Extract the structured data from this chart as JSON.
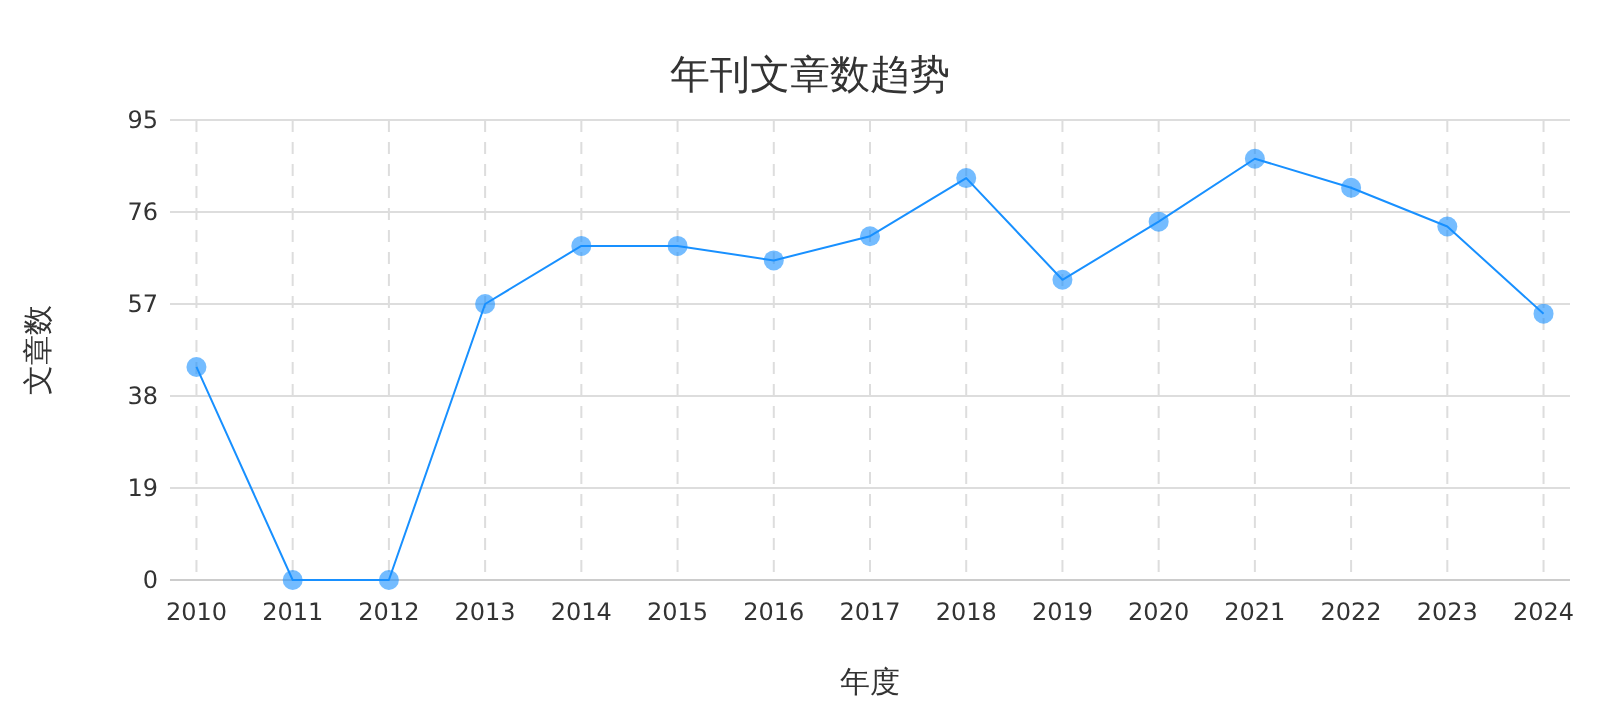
{
  "chart_data": {
    "type": "line",
    "title": "年刊文章数趋势",
    "xlabel": "年度",
    "ylabel": "文章数",
    "categories": [
      "2010",
      "2011",
      "2012",
      "2013",
      "2014",
      "2015",
      "2016",
      "2017",
      "2018",
      "2019",
      "2020",
      "2021",
      "2022",
      "2023",
      "2024"
    ],
    "series": [
      {
        "color": "#1890ff",
        "values": [
          44,
          0,
          0,
          57,
          69,
          69,
          66,
          71,
          83,
          62,
          74,
          87,
          81,
          73,
          55
        ]
      }
    ],
    "ylim": [
      0,
      95
    ],
    "yticks": [
      0,
      19,
      38,
      57,
      76,
      95
    ],
    "grid": true,
    "marker": "circle",
    "line_style": "solid"
  }
}
